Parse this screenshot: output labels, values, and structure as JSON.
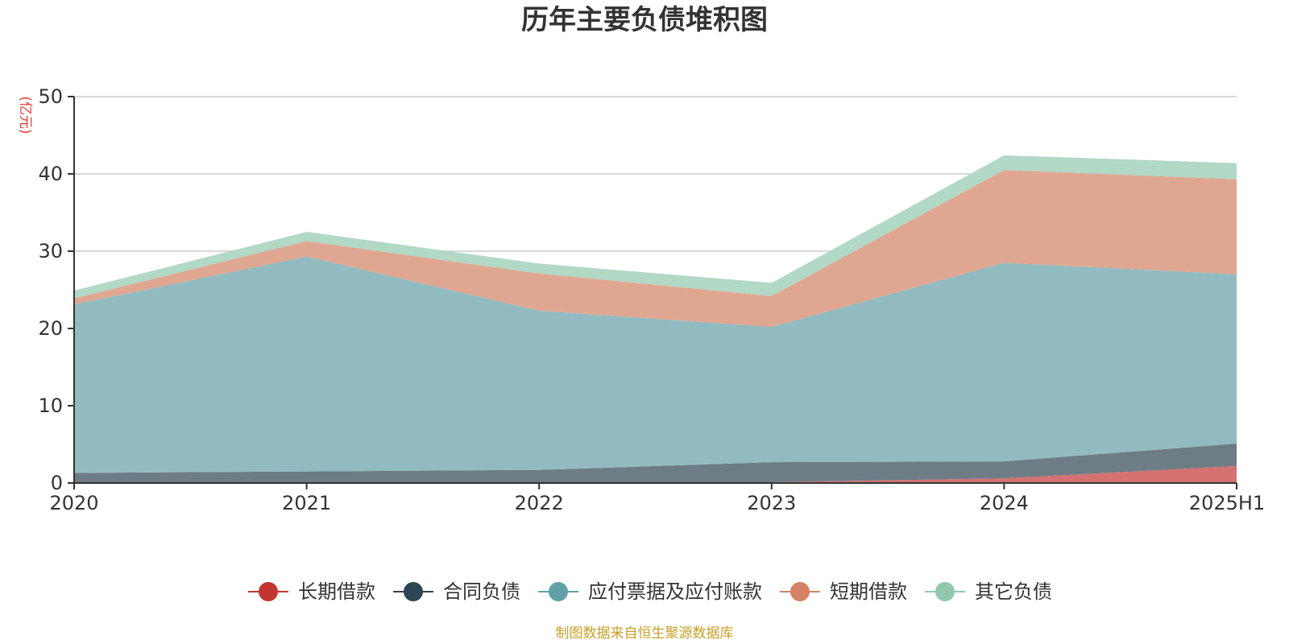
{
  "title": "历年主要负债堆积图",
  "source_note": "制图数据来自恒生聚源数据库",
  "colors": {
    "title": "#333333",
    "unit": "#e8382f",
    "source": "#c8a02a",
    "grid": "#cccccc",
    "axis": "#333333"
  },
  "chart_data": {
    "type": "area",
    "stacked": true,
    "title": "历年主要负债堆积图",
    "ylabel": "(亿元)",
    "ylim": [
      0,
      50
    ],
    "yticks": [
      0,
      10,
      20,
      30,
      40,
      50
    ],
    "grid": true,
    "legend_position": "bottom",
    "categories": [
      "2020",
      "2021",
      "2022",
      "2023",
      "2024",
      "2025H1"
    ],
    "series": [
      {
        "name": "长期借款",
        "color": "#c23531",
        "area_color": "#d47272",
        "values": [
          0.0,
          0.0,
          0.0,
          0.1,
          0.6,
          2.2
        ]
      },
      {
        "name": "合同负债",
        "color": "#2f4554",
        "area_color": "#6e7c86",
        "values": [
          1.3,
          1.5,
          1.7,
          2.6,
          2.2,
          2.9
        ]
      },
      {
        "name": "应付票据及应付账款",
        "color": "#61a0a8",
        "area_color": "#91bbc1",
        "values": [
          21.8,
          27.8,
          20.6,
          17.5,
          25.7,
          21.9
        ]
      },
      {
        "name": "短期借款",
        "color": "#d48265",
        "area_color": "#dfa791",
        "values": [
          0.8,
          2.0,
          4.8,
          4.0,
          12.0,
          12.3
        ]
      },
      {
        "name": "其它负债",
        "color": "#91c7ae",
        "area_color": "#b2d8c6",
        "values": [
          1.0,
          1.2,
          1.3,
          1.7,
          1.9,
          2.1
        ]
      }
    ]
  }
}
